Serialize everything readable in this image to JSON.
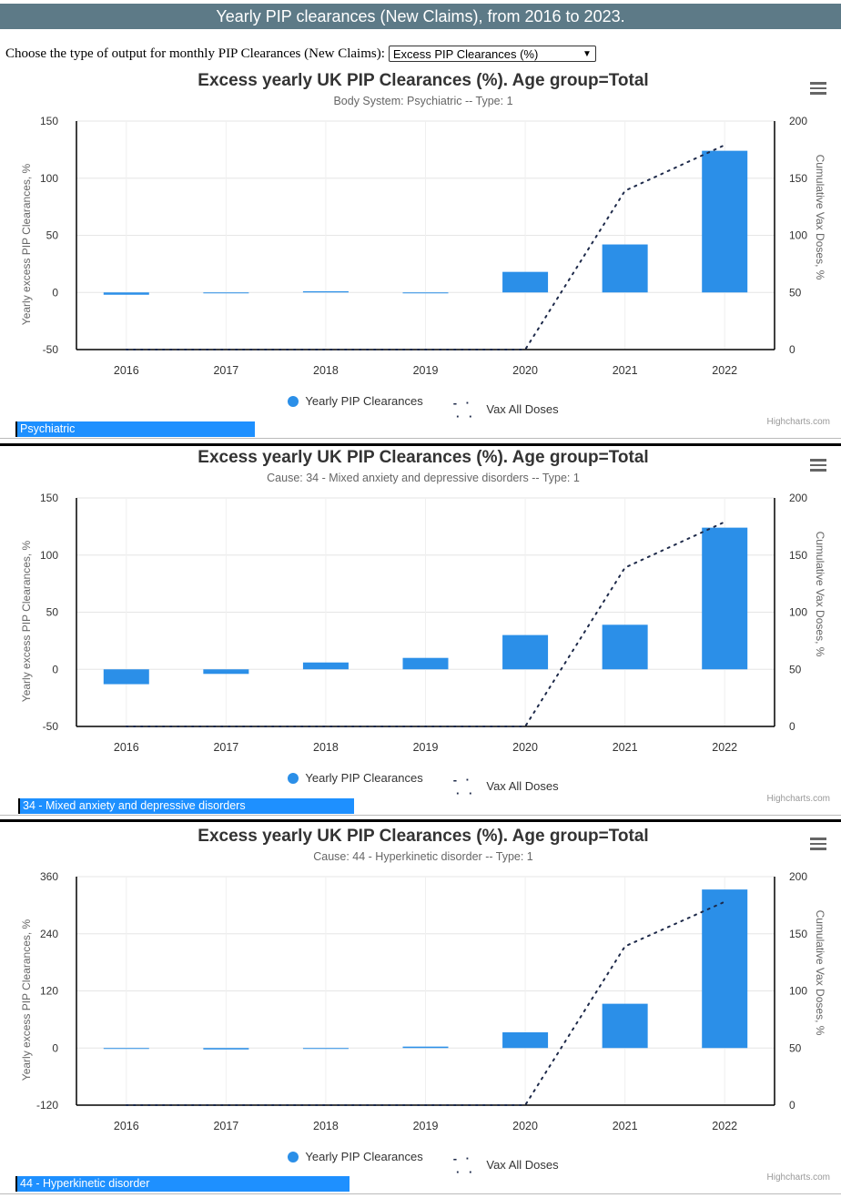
{
  "header": {
    "title": "Yearly PIP clearances (New Claims), from 2016 to 2023."
  },
  "controls": {
    "label": "Choose the type of output for monthly PIP Clearances (New Claims):",
    "selected": "Excess PIP Clearances (%)"
  },
  "colors": {
    "bar": "#2b8fe8",
    "line": "#1e2a4a",
    "banner": "#5d7a87",
    "selector_bar": "#1e90ff"
  },
  "icons": {
    "menu": "hamburger-menu-icon",
    "legend_bar": "circle-icon"
  },
  "charts": [
    {
      "title": "Excess yearly UK PIP Clearances (%). Age group=Total",
      "subtitle": "Body System: Psychiatric -- Type: 1",
      "selector_label": "Psychiatric",
      "credit": "Highcharts.com",
      "legend": {
        "bar": "Yearly PIP Clearances",
        "line": "Vax All Doses"
      },
      "y_title": "Yearly excess PIP Clearances, %",
      "y2_title": "Cumulative Vax Doses, %",
      "y_ticks": [
        "150",
        "100",
        "50",
        "0",
        "-50"
      ],
      "y2_ticks": [
        "200",
        "150",
        "100",
        "50",
        "0"
      ]
    },
    {
      "title": "Excess yearly UK PIP Clearances (%). Age group=Total",
      "subtitle": "Cause: 34 - Mixed anxiety and depressive disorders -- Type: 1",
      "selector_label": "34 - Mixed anxiety and depressive disorders",
      "credit": "Highcharts.com",
      "legend": {
        "bar": "Yearly PIP Clearances",
        "line": "Vax All Doses"
      },
      "y_title": "Yearly excess PIP Clearances, %",
      "y2_title": "Cumulative Vax Doses, %",
      "y_ticks": [
        "150",
        "100",
        "50",
        "0",
        "-50"
      ],
      "y2_ticks": [
        "200",
        "150",
        "100",
        "50",
        "0"
      ]
    },
    {
      "title": "Excess yearly UK PIP Clearances (%). Age group=Total",
      "subtitle": "Cause: 44 - Hyperkinetic disorder -- Type: 1",
      "selector_label": "44 - Hyperkinetic disorder",
      "credit": "Highcharts.com",
      "legend": {
        "bar": "Yearly PIP Clearances",
        "line": "Vax All Doses"
      },
      "y_title": "Yearly excess PIP Clearances, %",
      "y2_title": "Cumulative Vax Doses, %",
      "y_ticks": [
        "360",
        "240",
        "120",
        "0",
        "-120"
      ],
      "y2_ticks": [
        "200",
        "150",
        "100",
        "50",
        "0"
      ]
    }
  ],
  "chart_data": [
    {
      "type": "bar",
      "title": "Excess yearly UK PIP Clearances (%). Age group=Total",
      "subtitle": "Body System: Psychiatric -- Type: 1",
      "categories": [
        "2016",
        "2017",
        "2018",
        "2019",
        "2020",
        "2021",
        "2022"
      ],
      "series": [
        {
          "name": "Yearly PIP Clearances",
          "type": "bar",
          "axis": "left",
          "values": [
            -2,
            0,
            1,
            0,
            18,
            42,
            124
          ]
        },
        {
          "name": "Vax All Doses",
          "type": "line",
          "axis": "right",
          "values": [
            0,
            0,
            0,
            0,
            0,
            139,
            179
          ]
        }
      ],
      "ylabel": "Yearly excess PIP Clearances, %",
      "y2label": "Cumulative Vax Doses, %",
      "ylim": [
        -50,
        150
      ],
      "y2lim": [
        0,
        200
      ],
      "grid": true,
      "legend": "bottom"
    },
    {
      "type": "bar",
      "title": "Excess yearly UK PIP Clearances (%). Age group=Total",
      "subtitle": "Cause: 34 - Mixed anxiety and depressive disorders -- Type: 1",
      "categories": [
        "2016",
        "2017",
        "2018",
        "2019",
        "2020",
        "2021",
        "2022"
      ],
      "series": [
        {
          "name": "Yearly PIP Clearances",
          "type": "bar",
          "axis": "left",
          "values": [
            -13,
            -4,
            6,
            10,
            30,
            39,
            124
          ]
        },
        {
          "name": "Vax All Doses",
          "type": "line",
          "axis": "right",
          "values": [
            0,
            0,
            0,
            0,
            0,
            139,
            179
          ]
        }
      ],
      "ylabel": "Yearly excess PIP Clearances, %",
      "y2label": "Cumulative Vax Doses, %",
      "ylim": [
        -50,
        150
      ],
      "y2lim": [
        0,
        200
      ],
      "grid": true,
      "legend": "bottom"
    },
    {
      "type": "bar",
      "title": "Excess yearly UK PIP Clearances (%). Age group=Total",
      "subtitle": "Cause: 44 - Hyperkinetic disorder -- Type: 1",
      "categories": [
        "2016",
        "2017",
        "2018",
        "2019",
        "2020",
        "2021",
        "2022"
      ],
      "series": [
        {
          "name": "Yearly PIP Clearances",
          "type": "bar",
          "axis": "left",
          "values": [
            -1,
            -3,
            0,
            3,
            33,
            93,
            333
          ]
        },
        {
          "name": "Vax All Doses",
          "type": "line",
          "axis": "right",
          "values": [
            0,
            0,
            0,
            0,
            0,
            139,
            178
          ]
        }
      ],
      "ylabel": "Yearly excess PIP Clearances, %",
      "y2label": "Cumulative Vax Doses, %",
      "ylim": [
        -120,
        360
      ],
      "y2lim": [
        0,
        200
      ],
      "grid": true,
      "legend": "bottom"
    }
  ]
}
